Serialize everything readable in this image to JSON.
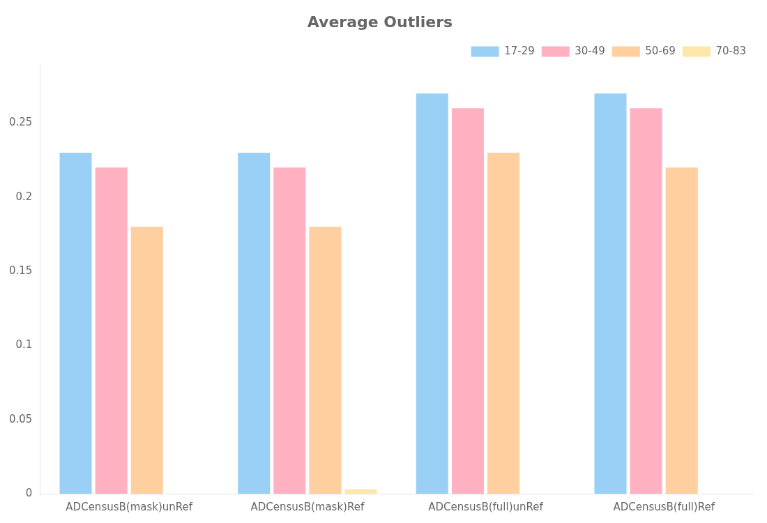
{
  "chart_data": {
    "type": "bar",
    "title": "Average Outliers",
    "categories": [
      "ADCensusB(mask)unRef",
      "ADCensusB(mask)Ref",
      "ADCensusB(full)unRef",
      "ADCensusB(full)Ref"
    ],
    "series": [
      {
        "name": "17-29",
        "values": [
          0.23,
          0.23,
          0.27,
          0.27
        ]
      },
      {
        "name": "30-49",
        "values": [
          0.22,
          0.22,
          0.26,
          0.26
        ]
      },
      {
        "name": "50-69",
        "values": [
          0.18,
          0.18,
          0.23,
          0.22
        ]
      },
      {
        "name": "70-83",
        "values": [
          0.0,
          0.003,
          0.0,
          0.0
        ]
      }
    ],
    "ylim": [
      0,
      0.29
    ],
    "yticks": [
      0,
      0.05,
      0.1,
      0.15,
      0.2,
      0.25
    ],
    "grid": false,
    "legend": "upper right"
  }
}
